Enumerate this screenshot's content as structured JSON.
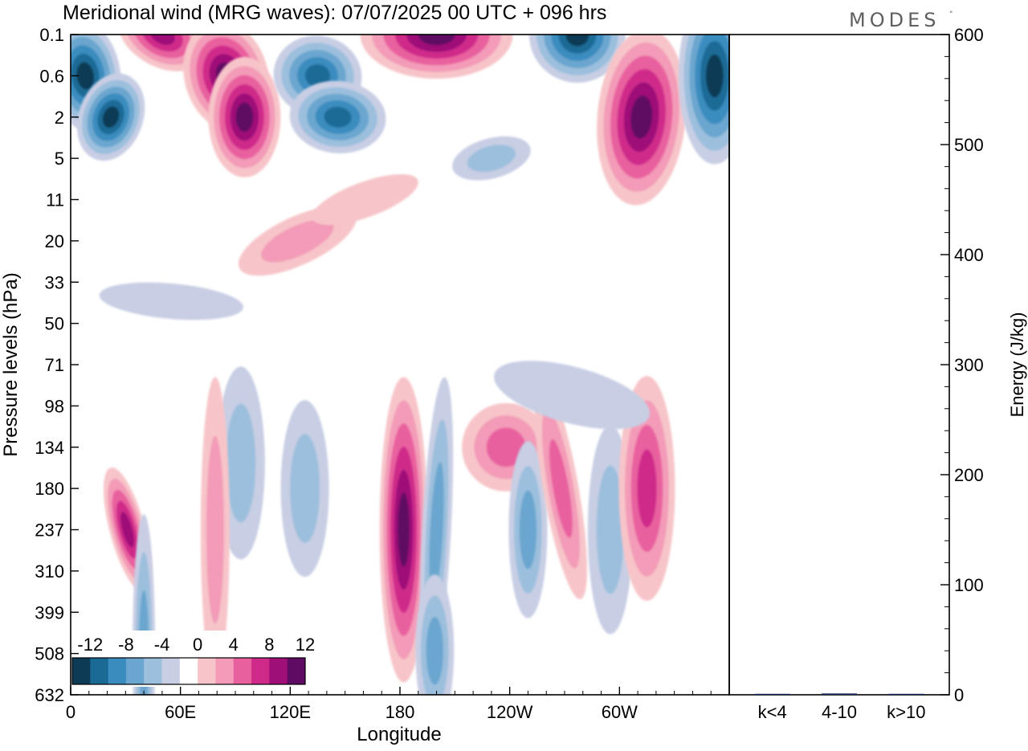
{
  "chart_data": [
    {
      "type": "heatmap",
      "title": "Meridional wind (MRG waves):  07/07/2025  00 UTC  + 096 hrs",
      "xlabel": "Longitude",
      "ylabel": "Pressure levels (hPa)",
      "x_ticks": [
        "0",
        "60E",
        "120E",
        "180",
        "120W",
        "60W"
      ],
      "x_tick_degrees": [
        0,
        60,
        120,
        180,
        240,
        300
      ],
      "xlim": [
        0,
        360
      ],
      "y_ticks": [
        "0.1",
        "0.6",
        "2",
        "5",
        "11",
        "20",
        "33",
        "50",
        "71",
        "98",
        "134",
        "180",
        "237",
        "310",
        "399",
        "508",
        "632"
      ],
      "colorbar": {
        "labels": [
          "-12",
          "-8",
          "-4",
          "0",
          "4",
          "8",
          "12"
        ],
        "levels": [
          -14,
          -12,
          -10,
          -8,
          -6,
          -4,
          -2,
          2,
          4,
          6,
          8,
          10,
          12,
          14
        ],
        "colors": [
          "#0d3b55",
          "#1b6a96",
          "#3a8cbf",
          "#6aa6cf",
          "#9bbfdd",
          "#c8cee4",
          "#ffffff",
          "#f7c5c9",
          "#f39bb8",
          "#e9609f",
          "#cf2a8a",
          "#9e0f78",
          "#5f0a63"
        ]
      },
      "features": [
        {
          "sign": "negative",
          "lon": 8,
          "level": 0.6,
          "peak": -14
        },
        {
          "sign": "negative",
          "lon": 22,
          "level": 2,
          "peak": -14
        },
        {
          "sign": "positive",
          "lon": 50,
          "level": 0.1,
          "peak": 12
        },
        {
          "sign": "positive",
          "lon": 85,
          "level": 0.6,
          "peak": 14
        },
        {
          "sign": "positive",
          "lon": 95,
          "level": 2,
          "peak": 14
        },
        {
          "sign": "negative",
          "lon": 135,
          "level": 0.6,
          "peak": -12
        },
        {
          "sign": "negative",
          "lon": 146,
          "level": 2,
          "peak": -12
        },
        {
          "sign": "positive",
          "lon": 200,
          "level": 0.1,
          "peak": 14
        },
        {
          "sign": "negative",
          "lon": 277,
          "level": 0.1,
          "peak": -14
        },
        {
          "sign": "positive",
          "lon": 312,
          "level": 2,
          "peak": 14
        },
        {
          "sign": "negative",
          "lon": 352,
          "level": 0.6,
          "peak": -14
        },
        {
          "sign": "positive",
          "lon": 182,
          "level": 237,
          "peak": 14
        },
        {
          "sign": "positive",
          "lon": 31,
          "level": 237,
          "peak": 12
        },
        {
          "sign": "negative",
          "lon": 40,
          "level": 500,
          "peak": -8
        },
        {
          "sign": "negative",
          "lon": 200,
          "level": 237,
          "peak": -8
        },
        {
          "sign": "negative",
          "lon": 199,
          "level": 500,
          "peak": -8
        },
        {
          "sign": "positive",
          "lon": 238,
          "level": 134,
          "peak": 8
        },
        {
          "sign": "negative",
          "lon": 250,
          "level": 237,
          "peak": -8
        },
        {
          "sign": "positive",
          "lon": 268,
          "level": 180,
          "peak": 8
        },
        {
          "sign": "negative",
          "lon": 295,
          "level": 237,
          "peak": -6
        },
        {
          "sign": "positive",
          "lon": 315,
          "level": 180,
          "peak": 10
        },
        {
          "sign": "negative",
          "lon": 93,
          "level": 150,
          "peak": -6
        },
        {
          "sign": "positive",
          "lon": 79,
          "level": 237,
          "peak": 6
        },
        {
          "sign": "negative",
          "lon": 128,
          "level": 180,
          "peak": -6
        },
        {
          "sign": "positive",
          "lon": 124,
          "level": 20,
          "peak": 6
        },
        {
          "sign": "positive",
          "lon": 161,
          "level": 11,
          "peak": 4
        },
        {
          "sign": "negative",
          "lon": 230,
          "level": 5,
          "peak": -6
        },
        {
          "sign": "negative",
          "lon": 55,
          "level": 40,
          "peak": -4
        },
        {
          "sign": "negative",
          "lon": 274,
          "level": 90,
          "peak": -4
        }
      ]
    },
    {
      "type": "bar",
      "ylabel": "Energy (J/kg)",
      "ylim": [
        0,
        600
      ],
      "y_ticks": [
        "0",
        "100",
        "200",
        "300",
        "400",
        "500",
        "600"
      ],
      "categories": [
        "k<4",
        "4-10",
        "k>10"
      ],
      "values": [
        0.3,
        1.2,
        0.2
      ]
    }
  ],
  "branding": {
    "logo": "MODES",
    "logo_mark": "°"
  }
}
